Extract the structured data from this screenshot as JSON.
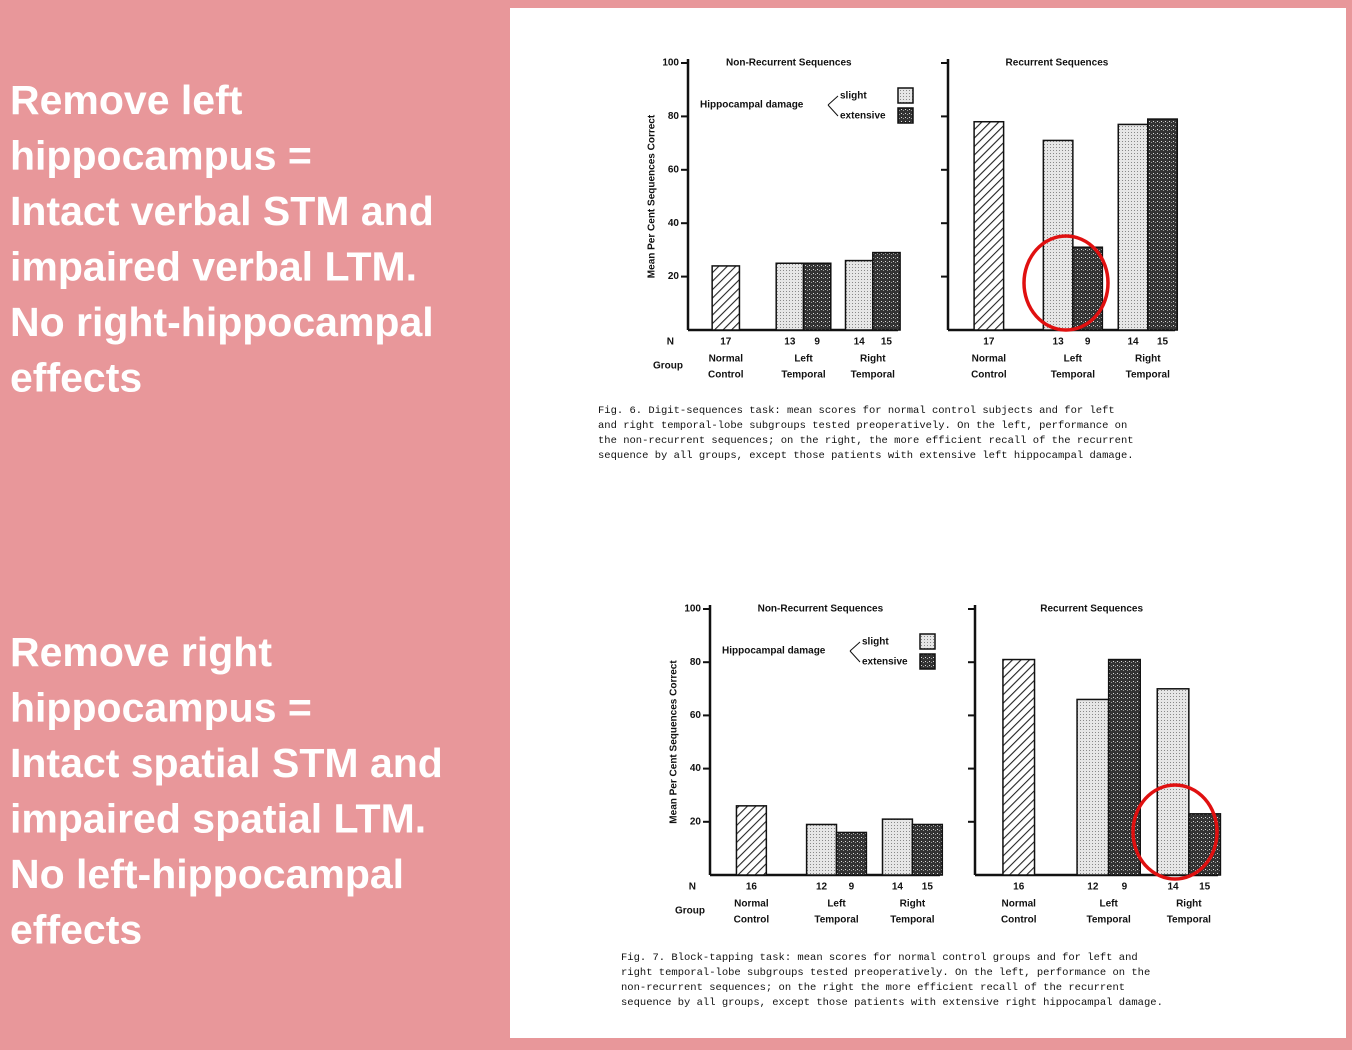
{
  "slide": {
    "left_blocks": [
      [
        "Remove left",
        "hippocampus =",
        "Intact verbal STM and",
        "impaired verbal LTM.",
        "No right-hippocampal",
        "effects"
      ],
      [
        "Remove right",
        "hippocampus =",
        "Intact spatial STM and",
        "impaired spatial LTM.",
        "No left-hippocampal",
        "effects"
      ]
    ]
  },
  "figures": [
    {
      "caption": [
        "Fig. 6. Digit-sequences task: mean scores for normal control subjects and for left",
        "and right temporal-lobe subgroups tested preoperatively. On the left, performance on",
        "the non-recurrent sequences; on the right, the more efficient recall of the recurrent",
        "sequence by all groups, except those patients with extensive left hippocampal damage."
      ]
    },
    {
      "caption": [
        "Fig. 7. Block-tapping task: mean scores for normal control groups and for left and",
        "right temporal-lobe subgroups tested preoperatively. On the left, performance on the",
        "non-recurrent sequences; on the right the more efficient recall of the recurrent",
        "sequence by all groups, except those patients with extensive right hippocampal damage."
      ]
    }
  ],
  "chart_data": [
    {
      "type": "bar",
      "title": "Non-Recurrent Sequences",
      "ylabel": "Mean Per Cent Sequences Correct",
      "n_label": "N",
      "group_label": "Group",
      "legend_title": "Hippocampal damage",
      "categories": [
        [
          "Normal",
          "Control"
        ],
        [
          "Left",
          "Temporal"
        ],
        [
          "Right",
          "Temporal"
        ]
      ],
      "series": [
        {
          "pattern": "hatch",
          "values": [
            24,
            null,
            null
          ],
          "n": [
            17,
            null,
            null
          ]
        },
        {
          "name": "slight",
          "pattern": "light",
          "values": [
            null,
            25,
            26
          ],
          "n": [
            null,
            13,
            14
          ]
        },
        {
          "name": "extensive",
          "pattern": "dark",
          "values": [
            null,
            25,
            29
          ],
          "n": [
            null,
            9,
            15
          ]
        }
      ],
      "ylim": [
        0,
        100
      ],
      "yticks": [
        20,
        40,
        60,
        80,
        100
      ],
      "show_ytick_labels": true
    },
    {
      "type": "bar",
      "title": "Recurrent Sequences",
      "categories": [
        [
          "Normal",
          "Control"
        ],
        [
          "Left",
          "Temporal"
        ],
        [
          "Right",
          "Temporal"
        ]
      ],
      "series": [
        {
          "pattern": "hatch",
          "values": [
            78,
            null,
            null
          ],
          "n": [
            17,
            null,
            null
          ]
        },
        {
          "pattern": "light",
          "values": [
            null,
            71,
            77
          ],
          "n": [
            null,
            13,
            14
          ]
        },
        {
          "pattern": "dark",
          "values": [
            null,
            31,
            79
          ],
          "n": [
            null,
            9,
            15
          ]
        }
      ],
      "ylim": [
        0,
        100
      ],
      "yticks": [
        20,
        40,
        60,
        80,
        100
      ],
      "show_ytick_labels": false
    },
    {
      "type": "bar",
      "title": "Non-Recurrent Sequences",
      "ylabel": "Mean Per Cent Sequences Correct",
      "n_label": "N",
      "group_label": "Group",
      "legend_title": "Hippocampal damage",
      "categories": [
        [
          "Normal",
          "Control"
        ],
        [
          "Left",
          "Temporal"
        ],
        [
          "Right",
          "Temporal"
        ]
      ],
      "series": [
        {
          "pattern": "hatch",
          "values": [
            26,
            null,
            null
          ],
          "n": [
            16,
            null,
            null
          ]
        },
        {
          "name": "slight",
          "pattern": "light",
          "values": [
            null,
            19,
            21
          ],
          "n": [
            null,
            12,
            14
          ]
        },
        {
          "name": "extensive",
          "pattern": "dark",
          "values": [
            null,
            16,
            19
          ],
          "n": [
            null,
            9,
            15
          ]
        }
      ],
      "ylim": [
        0,
        100
      ],
      "yticks": [
        20,
        40,
        60,
        80,
        100
      ],
      "show_ytick_labels": true
    },
    {
      "type": "bar",
      "title": "Recurrent Sequences",
      "categories": [
        [
          "Normal",
          "Control"
        ],
        [
          "Left",
          "Temporal"
        ],
        [
          "Right",
          "Temporal"
        ]
      ],
      "series": [
        {
          "pattern": "hatch",
          "values": [
            81,
            null,
            null
          ],
          "n": [
            16,
            null,
            null
          ]
        },
        {
          "pattern": "light",
          "values": [
            null,
            66,
            70
          ],
          "n": [
            null,
            12,
            14
          ]
        },
        {
          "pattern": "dark",
          "values": [
            null,
            81,
            23
          ],
          "n": [
            null,
            9,
            15
          ]
        }
      ],
      "ylim": [
        0,
        100
      ],
      "yticks": [
        20,
        40,
        60,
        80,
        100
      ],
      "show_ytick_labels": false
    }
  ]
}
